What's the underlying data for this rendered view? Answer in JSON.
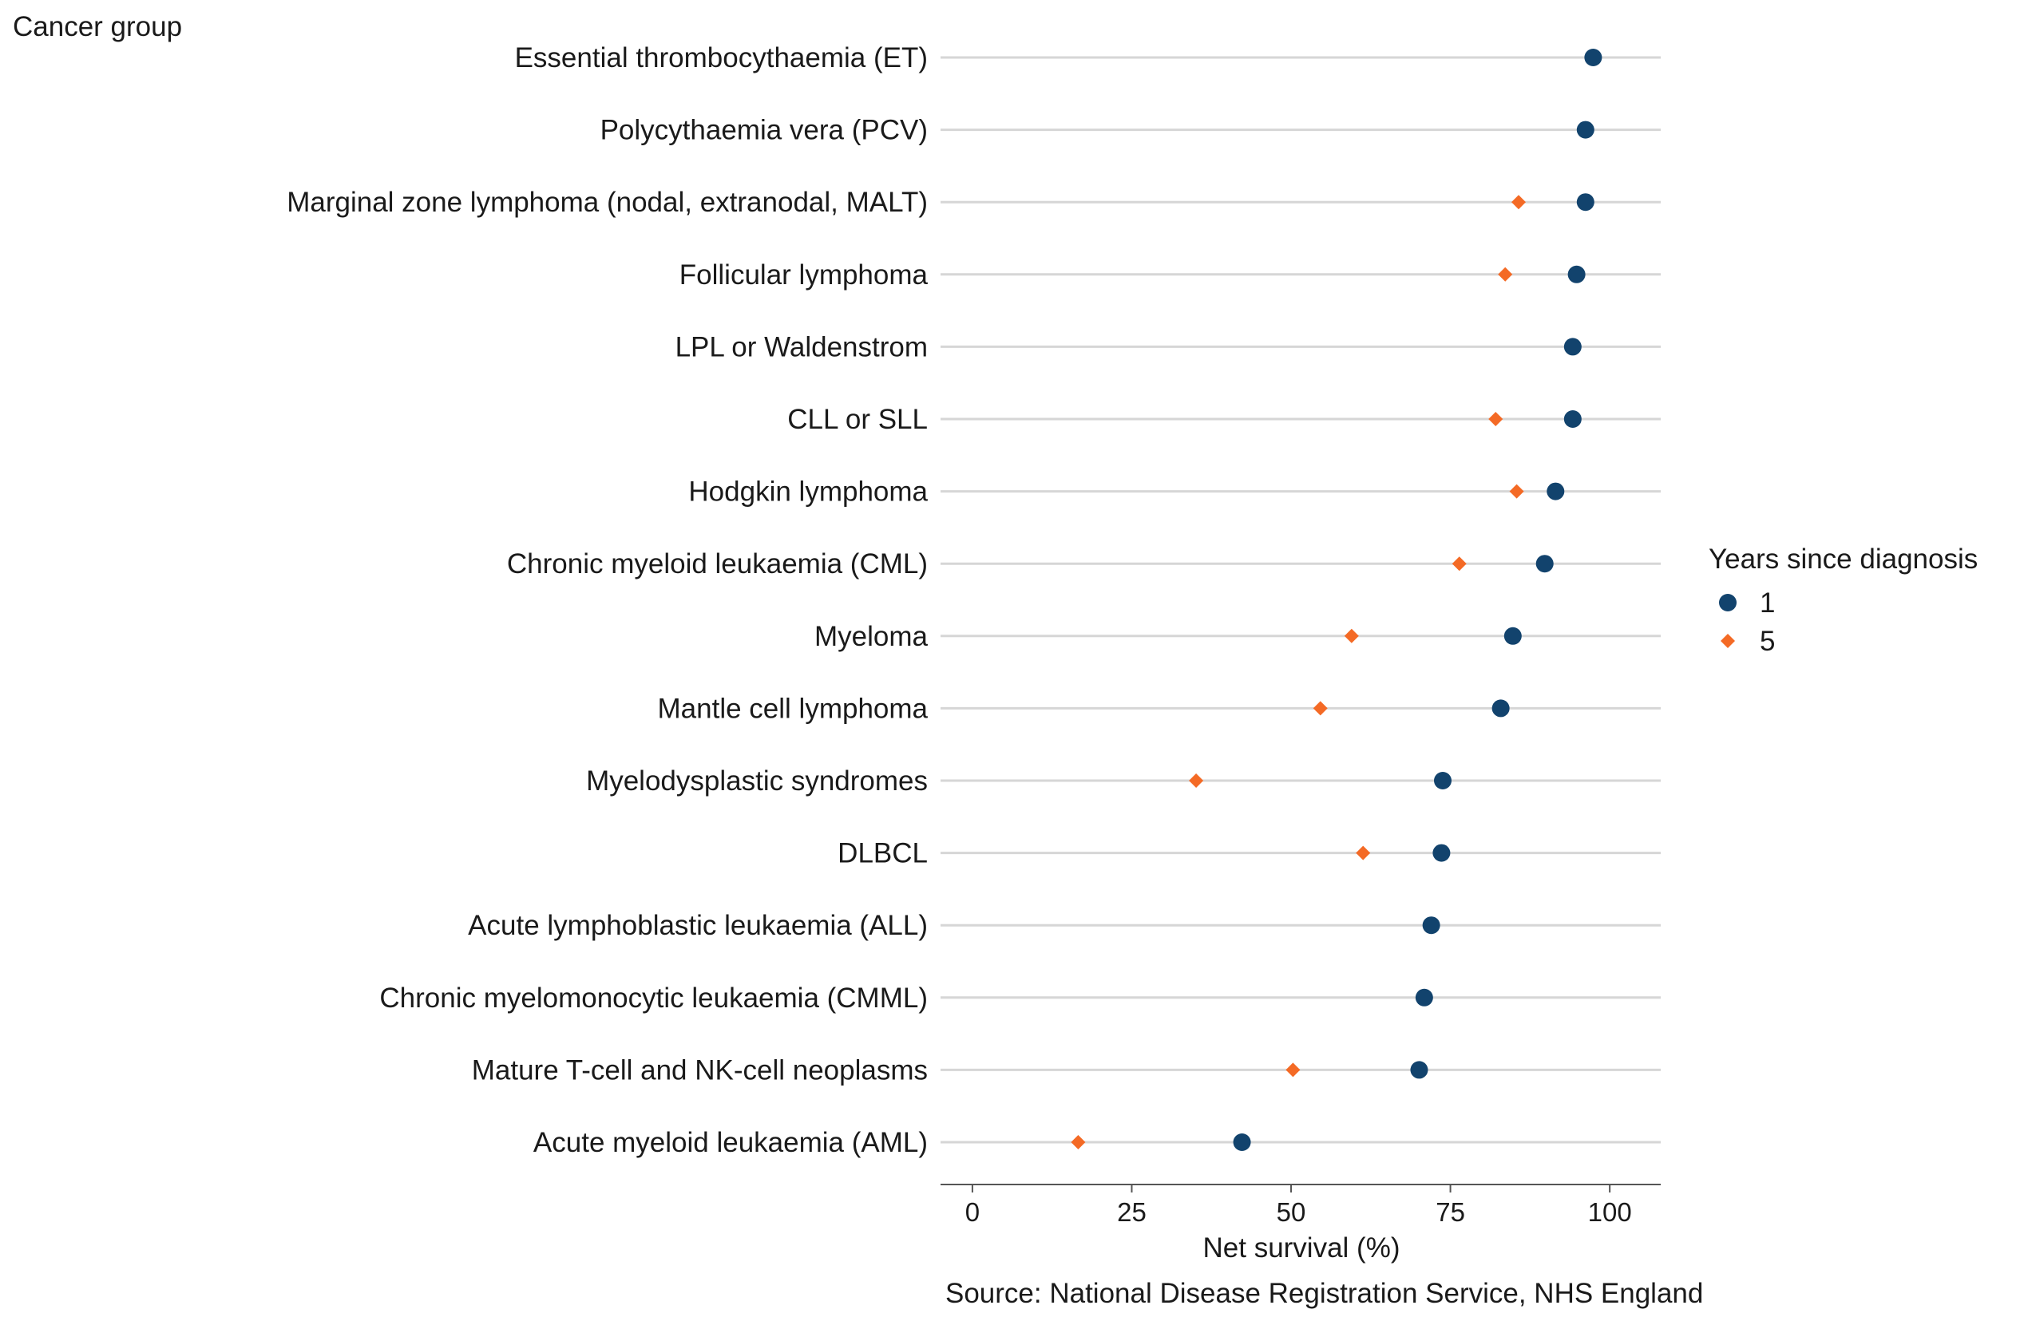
{
  "chart_data": {
    "type": "scatter",
    "title": "",
    "y_axis_title": "Cancer group",
    "xlabel": "Net survival (%)",
    "caption": "Source: National Disease Registration Service, NHS England",
    "xlim": [
      -5,
      108
    ],
    "x_ticks": [
      0,
      25,
      50,
      75,
      100
    ],
    "grid": "horizontal lines per category",
    "legend": {
      "title": "Years since diagnosis",
      "placement": "right",
      "entries": [
        {
          "label": "1",
          "color": "#12436D",
          "shape": "circle"
        },
        {
          "label": "5",
          "color": "#F46A25",
          "shape": "diamond"
        }
      ]
    },
    "categories": [
      "Essential thrombocythaemia (ET)",
      "Polycythaemia vera (PCV)",
      "Marginal zone lymphoma (nodal, extranodal, MALT)",
      "Follicular lymphoma",
      "LPL or Waldenstrom",
      "CLL or SLL",
      "Hodgkin lymphoma",
      "Chronic myeloid leukaemia (CML)",
      "Myeloma",
      "Mantle cell lymphoma",
      "Myelodysplastic syndromes",
      "DLBCL",
      "Acute lymphoblastic leukaemia (ALL)",
      "Chronic myelomonocytic leukaemia (CMML)",
      "Mature T-cell and NK-cell neoplasms",
      "Acute myeloid leukaemia (AML)"
    ],
    "series": [
      {
        "name": "1",
        "values": [
          97.4,
          96.2,
          96.2,
          94.8,
          94.2,
          94.2,
          91.5,
          89.8,
          84.8,
          82.9,
          73.8,
          73.6,
          72.0,
          70.9,
          70.1,
          42.3
        ]
      },
      {
        "name": "5",
        "values": [
          null,
          null,
          85.7,
          83.6,
          null,
          82.1,
          85.4,
          76.4,
          59.5,
          54.6,
          35.1,
          61.3,
          null,
          null,
          50.3,
          16.6
        ]
      }
    ]
  },
  "colors": {
    "one_year": "#12436D",
    "five_year": "#F46A25",
    "gridline": "#d6d6d6"
  }
}
